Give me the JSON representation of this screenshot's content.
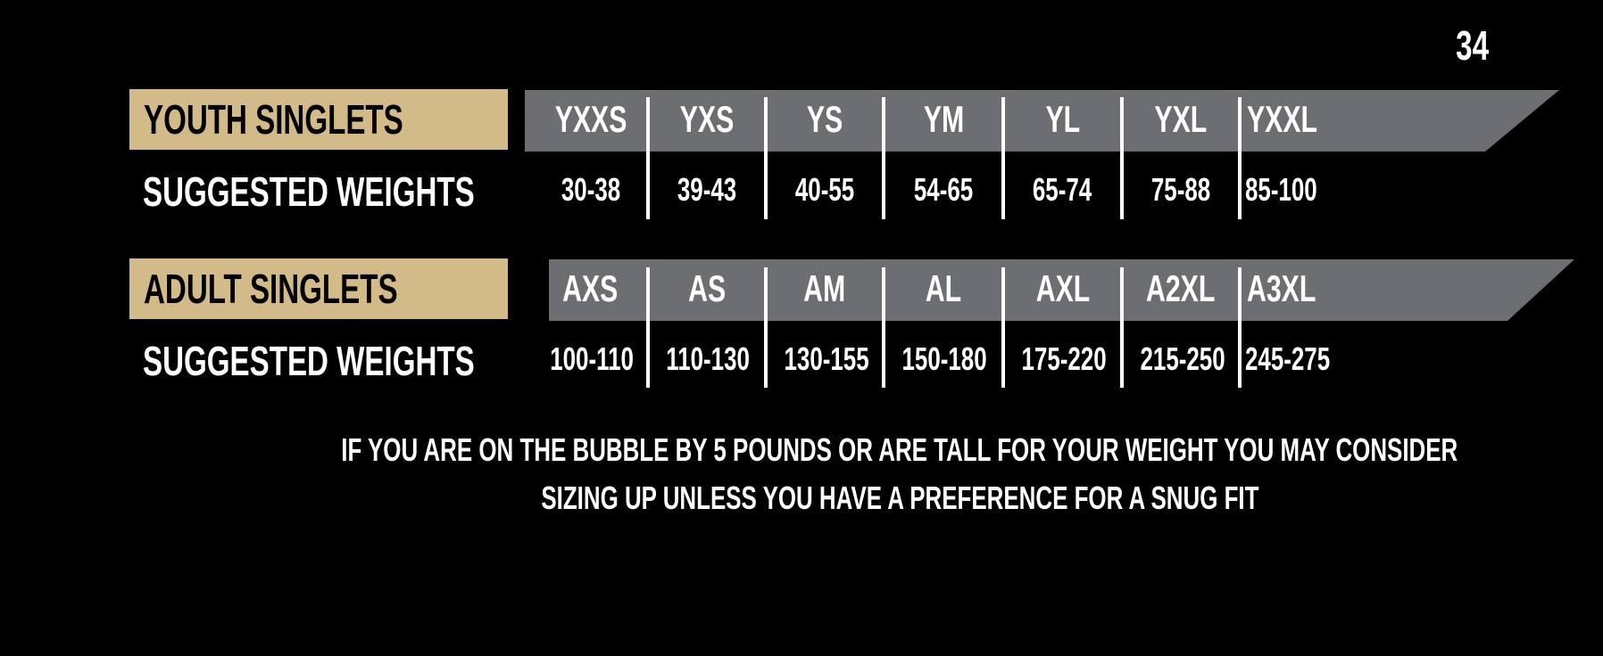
{
  "page_number": "34",
  "youth": {
    "title": "YOUTH SINGLETS",
    "weights_label": "SUGGESTED WEIGHTS",
    "sizes": [
      "YXXS",
      "YXS",
      "YS",
      "YM",
      "YL",
      "YXL",
      "YXXL"
    ],
    "weights": [
      "30-38",
      "39-43",
      "40-55",
      "54-65",
      "65-74",
      "75-88",
      "85-100"
    ]
  },
  "adult": {
    "title": "ADULT SINGLETS",
    "weights_label": "SUGGESTED WEIGHTS",
    "sizes": [
      "AXS",
      "AS",
      "AM",
      "AL",
      "AXL",
      "A2XL",
      "A3XL"
    ],
    "weights": [
      "100-110",
      "110-130",
      "130-155",
      "150-180",
      "175-220",
      "215-250",
      "245-275"
    ]
  },
  "note": {
    "line1": "IF YOU ARE ON THE BUBBLE BY 5 POUNDS OR ARE TALL FOR YOUR WEIGHT YOU MAY CONSIDER",
    "line2": "SIZING UP UNLESS YOU HAVE A PREFERENCE FOR A SNUG FIT"
  },
  "colors": {
    "gold": "#d3bb89",
    "band": "#6d6e71",
    "background": "#000000"
  }
}
